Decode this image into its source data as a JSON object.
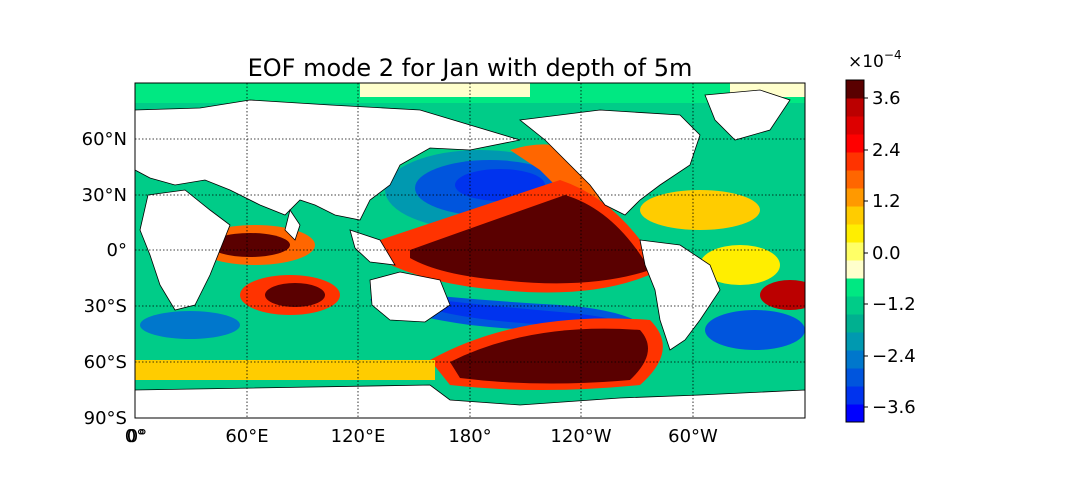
{
  "title": "EOF mode 2 for Jan with depth of 5m",
  "map": {
    "lon_labels": [
      "0°",
      "0°",
      "60°E",
      "120°E",
      "180°",
      "120°W",
      "60°W"
    ],
    "lat_labels": [
      "60°N",
      "30°N",
      "0°",
      "30°S",
      "60°S",
      "90°S"
    ],
    "grid": true,
    "land_color": "#ffffff",
    "coastline_color": "#000000"
  },
  "colorbar": {
    "exponent_label": "×10",
    "exponent_power": "−4",
    "ticks": [
      "3.6",
      "2.4",
      "1.2",
      "0.0",
      "−1.2",
      "−2.4",
      "−3.6"
    ],
    "colors": [
      "#0000ff",
      "#0033ee",
      "#0055dd",
      "#0077cc",
      "#0099b0",
      "#00b090",
      "#00cc88",
      "#00e882",
      "#ffffcc",
      "#ffff66",
      "#ffee00",
      "#ffcc00",
      "#ff9900",
      "#ff6600",
      "#ff3300",
      "#ff0000",
      "#dd0000",
      "#bb0000",
      "#5a0000"
    ]
  }
}
